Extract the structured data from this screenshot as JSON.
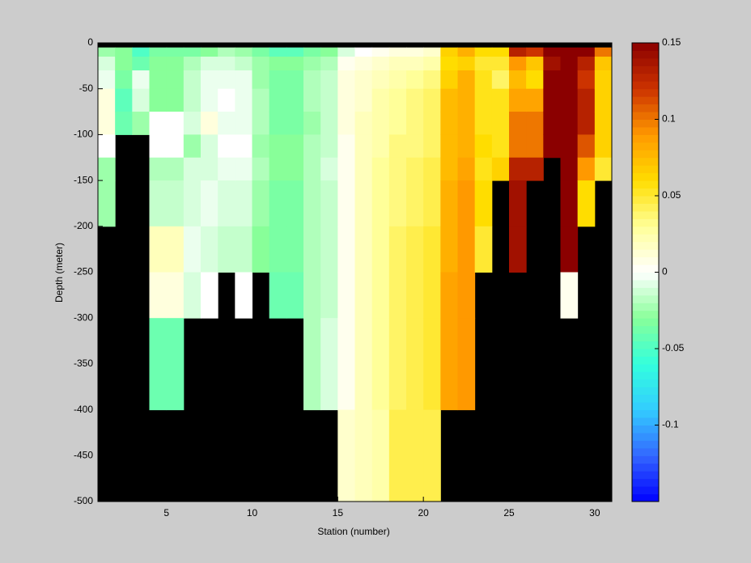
{
  "chart_data": {
    "type": "heatmap",
    "xlabel": "Station (number)",
    "ylabel": "Depth (meter)",
    "x": [
      1,
      2,
      3,
      4,
      5,
      6,
      7,
      8,
      9,
      10,
      11,
      12,
      13,
      14,
      15,
      16,
      17,
      18,
      19,
      20,
      21,
      22,
      23,
      24,
      25,
      26,
      27,
      28,
      29,
      30,
      31
    ],
    "y": [
      0,
      -5,
      -15,
      -30,
      -50,
      -75,
      -100,
      -125,
      -150,
      -200,
      -250,
      -300,
      -400,
      -500
    ],
    "values": [
      [
        null,
        -0.025,
        -0.01,
        -0.005,
        0.01,
        0.01,
        0,
        -0.025,
        -0.025,
        null,
        null,
        null,
        null
      ],
      [
        null,
        -0.03,
        -0.03,
        -0.035,
        -0.045,
        -0.04,
        null,
        null,
        null,
        null,
        null,
        null,
        null
      ],
      [
        null,
        -0.05,
        -0.04,
        -0.005,
        -0.01,
        -0.025,
        null,
        null,
        null,
        null,
        null,
        null,
        null
      ],
      [
        null,
        -0.035,
        -0.03,
        -0.03,
        -0.03,
        0,
        0,
        -0.02,
        -0.015,
        0.02,
        0.01,
        -0.04,
        null
      ],
      [
        null,
        -0.035,
        -0.03,
        -0.03,
        -0.03,
        0,
        0,
        -0.02,
        -0.015,
        0.02,
        0.01,
        -0.04,
        null
      ],
      [
        null,
        -0.035,
        -0.02,
        -0.015,
        -0.015,
        -0.01,
        -0.025,
        -0.01,
        -0.01,
        -0.005,
        -0.01,
        null,
        null
      ],
      [
        null,
        -0.03,
        -0.01,
        -0.005,
        -0.005,
        0.01,
        -0.01,
        -0.01,
        -0.005,
        -0.01,
        0,
        null,
        null
      ],
      [
        null,
        -0.02,
        -0.01,
        -0.005,
        0,
        -0.005,
        0,
        -0.005,
        -0.01,
        -0.015,
        null,
        null,
        null
      ],
      [
        null,
        -0.025,
        -0.015,
        -0.005,
        -0.005,
        -0.005,
        0,
        -0.005,
        -0.01,
        -0.015,
        0,
        null,
        null
      ],
      [
        null,
        -0.035,
        -0.025,
        -0.025,
        -0.02,
        -0.02,
        -0.025,
        -0.02,
        -0.025,
        -0.03,
        null,
        null,
        null
      ],
      [
        null,
        -0.045,
        -0.03,
        -0.035,
        -0.035,
        -0.035,
        -0.03,
        -0.03,
        -0.035,
        -0.035,
        -0.04,
        null,
        null
      ],
      [
        null,
        -0.045,
        -0.03,
        -0.035,
        -0.035,
        -0.035,
        -0.03,
        -0.03,
        -0.035,
        -0.035,
        -0.04,
        null,
        null
      ],
      [
        null,
        -0.035,
        -0.025,
        -0.02,
        -0.02,
        -0.025,
        -0.02,
        -0.02,
        -0.02,
        -0.02,
        -0.02,
        -0.02,
        null
      ],
      [
        null,
        -0.03,
        -0.02,
        -0.015,
        -0.015,
        -0.015,
        -0.015,
        -0.01,
        -0.015,
        -0.015,
        -0.015,
        -0.01,
        null
      ],
      [
        null,
        -0.01,
        0.005,
        0.01,
        0.01,
        0.01,
        0.005,
        0.005,
        0.005,
        0.005,
        0.005,
        0.005,
        0.015
      ],
      [
        null,
        0,
        0.01,
        0.015,
        0.015,
        0.02,
        0.02,
        0.02,
        0.02,
        0.02,
        0.02,
        0.02,
        0.02
      ],
      [
        null,
        0.005,
        0.015,
        0.02,
        0.025,
        0.025,
        0.025,
        0.03,
        0.03,
        0.03,
        0.03,
        0.03,
        0.025
      ],
      [
        null,
        0.01,
        0.02,
        0.025,
        0.03,
        0.03,
        0.035,
        0.035,
        0.035,
        0.04,
        0.04,
        0.04,
        0.045
      ],
      [
        null,
        0.01,
        0.02,
        0.03,
        0.035,
        0.035,
        0.035,
        0.04,
        0.04,
        0.045,
        0.045,
        0.045,
        0.045
      ],
      [
        null,
        0.015,
        0.025,
        0.035,
        0.04,
        0.04,
        0.04,
        0.045,
        0.045,
        0.05,
        0.05,
        0.05,
        0.045
      ],
      [
        null,
        0.065,
        0.06,
        0.065,
        0.075,
        0.075,
        0.075,
        0.075,
        0.08,
        0.08,
        0.085,
        0.085,
        null
      ],
      [
        null,
        0.08,
        0.065,
        0.08,
        0.08,
        0.08,
        0.08,
        0.085,
        0.09,
        0.09,
        0.09,
        0.09,
        null
      ],
      [
        null,
        0.06,
        0.05,
        0.055,
        0.055,
        0.055,
        0.06,
        0.055,
        0.06,
        0.05,
        null,
        null,
        null
      ],
      [
        null,
        0.06,
        0.05,
        0.04,
        0.055,
        0.055,
        0.055,
        0.065,
        null,
        null,
        null,
        null,
        null
      ],
      [
        null,
        0.13,
        0.09,
        0.075,
        0.085,
        0.1,
        0.1,
        0.13,
        0.14,
        0.14,
        null,
        null,
        null
      ],
      [
        null,
        0.12,
        0.07,
        0.06,
        0.085,
        0.1,
        0.1,
        0.13,
        null,
        null,
        null,
        null,
        null
      ],
      [
        null,
        0.15,
        0.14,
        0.15,
        0.15,
        0.15,
        0.15,
        null,
        null,
        null,
        null,
        null,
        null
      ],
      [
        null,
        0.15,
        0.15,
        0.15,
        0.15,
        0.15,
        0.15,
        0.15,
        0.15,
        0.15,
        0.005,
        null,
        null
      ],
      [
        null,
        0.15,
        0.13,
        0.12,
        0.13,
        0.13,
        0.11,
        0.09,
        0.06,
        null,
        null,
        null,
        null
      ],
      [
        null,
        0.1,
        0.07,
        0.065,
        0.065,
        0.065,
        0.065,
        0.05,
        null,
        null,
        null,
        null,
        null
      ]
    ],
    "xlim": [
      1,
      31
    ],
    "ylim": [
      -500,
      0
    ],
    "xticks": [
      5,
      10,
      15,
      20,
      25,
      30
    ],
    "yticks": [
      0,
      -50,
      -100,
      -150,
      -200,
      -250,
      -300,
      -350,
      -400,
      -450,
      -500
    ],
    "clim": [
      -0.15,
      0.15
    ],
    "cticks": [
      -0.1,
      -0.05,
      0,
      0.05,
      0.1,
      0.15
    ],
    "colormap": [
      "#0000ff",
      "#3366ff",
      "#33ccff",
      "#33ffdd",
      "#88ff99",
      "#ffffff",
      "#ffff99",
      "#ffdd00",
      "#ff9900",
      "#cc3300",
      "#8b0000"
    ],
    "nan_color": "#000000"
  }
}
